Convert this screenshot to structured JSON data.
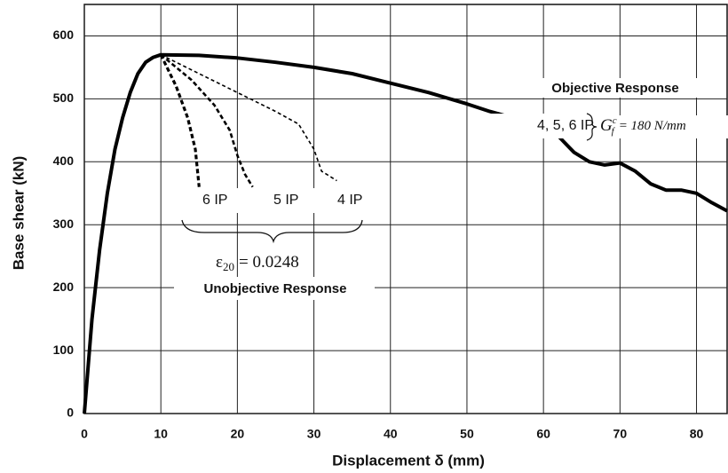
{
  "chart_data": {
    "type": "line",
    "xlabel": "Displacement δ (mm)",
    "ylabel": "Base shear (kN)",
    "xlim": [
      0,
      84
    ],
    "ylim": [
      0,
      650
    ],
    "xticks": [
      0,
      10,
      20,
      30,
      40,
      50,
      60,
      70,
      80
    ],
    "yticks": [
      0,
      100,
      200,
      300,
      400,
      500,
      600
    ],
    "grid": true,
    "series": [
      {
        "name": "4, 5, 6 IP",
        "color": "#000000",
        "style": "solid",
        "x": [
          0,
          1,
          2,
          3,
          4,
          5,
          6,
          7,
          8,
          9,
          10,
          15,
          20,
          25,
          30,
          35,
          40,
          45,
          50,
          53,
          56,
          60,
          62,
          64,
          66,
          68,
          70,
          72,
          74,
          76,
          78,
          80,
          82,
          84
        ],
        "values": [
          0,
          150,
          260,
          350,
          420,
          470,
          510,
          540,
          558,
          566,
          570,
          569,
          565,
          558,
          550,
          540,
          525,
          510,
          492,
          480,
          470,
          455,
          440,
          415,
          400,
          395,
          398,
          385,
          365,
          355,
          355,
          350,
          335,
          322
        ]
      },
      {
        "name": "6 IP",
        "color": "#000000",
        "style": "dashed",
        "x": [
          10,
          12,
          13.5,
          14.5,
          15
        ],
        "values": [
          570,
          520,
          470,
          420,
          360
        ]
      },
      {
        "name": "5 IP",
        "color": "#000000",
        "style": "dashed",
        "x": [
          10,
          14,
          17,
          19,
          20,
          21,
          22
        ],
        "values": [
          570,
          530,
          490,
          450,
          410,
          380,
          360
        ]
      },
      {
        "name": "4 IP",
        "color": "#000000",
        "style": "dashed",
        "x": [
          10,
          15,
          20,
          25,
          28,
          30,
          31,
          33
        ],
        "values": [
          570,
          540,
          510,
          480,
          460,
          420,
          385,
          370
        ]
      }
    ],
    "annotations": {
      "objective": "Objective Response",
      "unobjective": "Unobjective Response",
      "fracture_energy": {
        "symbol": "G",
        "sub": "f",
        "sup": "c",
        "text": "= 180 N/mm"
      },
      "strain": {
        "symbol": "ε",
        "sub": "20",
        "text": "= 0.0248"
      }
    }
  }
}
